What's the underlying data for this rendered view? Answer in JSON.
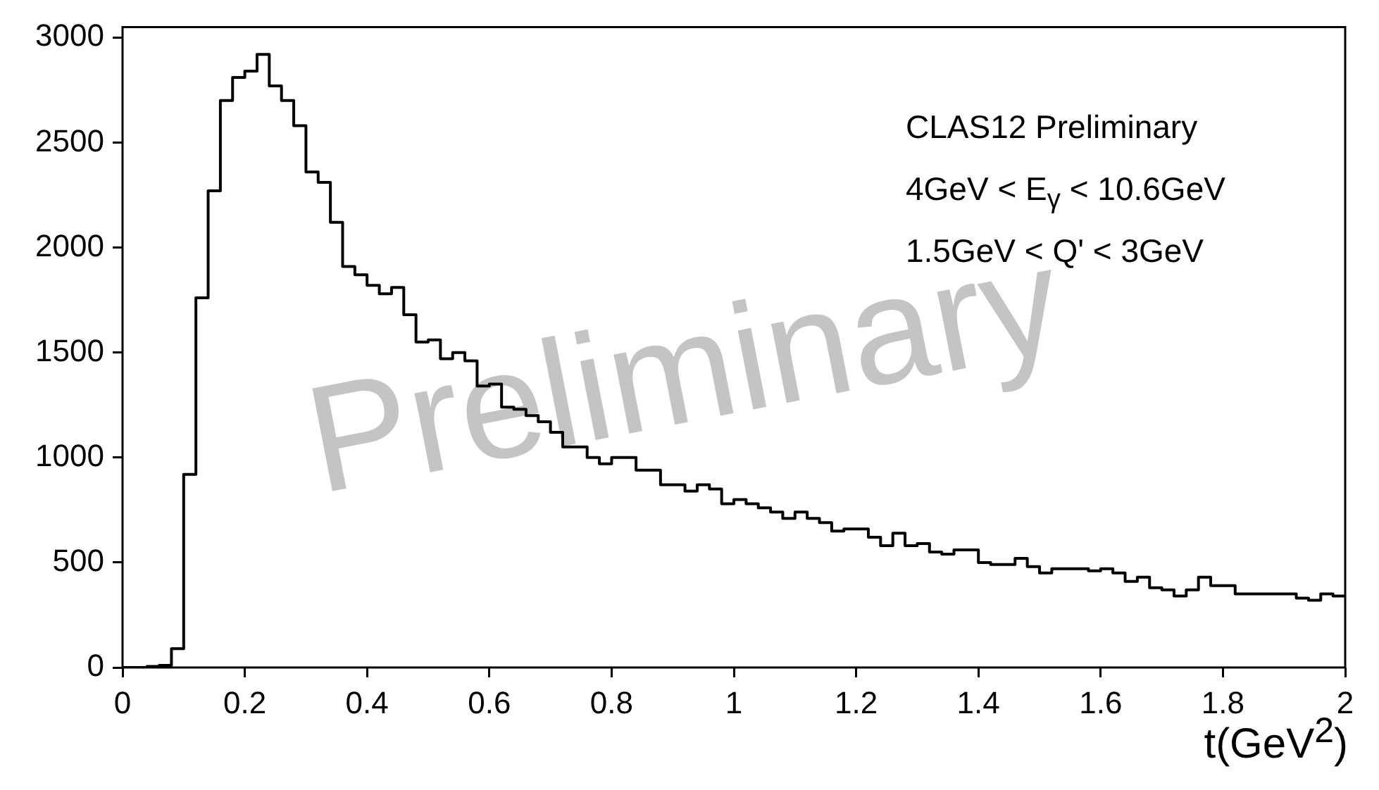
{
  "chart_data": {
    "type": "histogram",
    "xlabel": "t(GeV$^{2}$)",
    "annotations": [
      "Preliminary",
      "CLAS12 Preliminary",
      "4GeV < E$_{γ}$ < 10.6GeV",
      "1.5GeV < Q' < 3GeV"
    ],
    "bins": [
      0,
      0.02,
      0.04,
      0.06,
      0.08,
      0.1,
      0.12,
      0.14,
      0.16,
      0.18,
      0.2,
      0.22,
      0.24,
      0.26,
      0.28,
      0.3,
      0.32,
      0.34,
      0.36,
      0.38,
      0.4,
      0.42,
      0.44,
      0.46,
      0.48,
      0.5,
      0.52,
      0.54,
      0.56,
      0.58,
      0.6,
      0.62,
      0.64,
      0.66,
      0.68,
      0.7,
      0.72,
      0.74,
      0.76,
      0.78,
      0.8,
      0.82,
      0.84,
      0.86,
      0.88,
      0.9,
      0.92,
      0.94,
      0.96,
      0.98,
      1,
      1.02,
      1.04,
      1.06,
      1.08,
      1.1,
      1.12,
      1.14,
      1.16,
      1.18,
      1.2,
      1.22,
      1.24,
      1.26,
      1.28,
      1.3,
      1.32,
      1.34,
      1.36,
      1.38,
      1.4,
      1.42,
      1.44,
      1.46,
      1.48,
      1.5,
      1.52,
      1.54,
      1.56,
      1.58,
      1.6,
      1.62,
      1.64,
      1.66,
      1.68,
      1.7,
      1.72,
      1.74,
      1.76,
      1.78,
      1.8,
      1.82,
      1.84,
      1.86,
      1.88,
      1.9,
      1.92,
      1.94,
      1.96,
      1.98,
      2
    ],
    "values": [
      0,
      0,
      5,
      10,
      90,
      920,
      1760,
      2270,
      2700,
      2810,
      2840,
      2920,
      2770,
      2700,
      2580,
      2360,
      2310,
      2120,
      1910,
      1870,
      1820,
      1780,
      1810,
      1680,
      1550,
      1560,
      1470,
      1500,
      1460,
      1340,
      1350,
      1240,
      1230,
      1200,
      1170,
      1120,
      1050,
      1050,
      1000,
      970,
      1000,
      1000,
      940,
      940,
      870,
      870,
      840,
      870,
      850,
      780,
      800,
      780,
      760,
      740,
      710,
      740,
      710,
      690,
      650,
      660,
      660,
      620,
      580,
      640,
      580,
      590,
      550,
      540,
      560,
      560,
      500,
      490,
      490,
      520,
      480,
      450,
      470,
      470,
      470,
      460,
      470,
      450,
      410,
      430,
      380,
      370,
      340,
      370,
      430,
      390,
      390,
      350,
      350,
      350,
      350,
      350,
      330,
      320,
      350,
      340
    ],
    "color": "#000000",
    "xlim": [
      0,
      2
    ],
    "xticks": [
      0,
      0.2,
      0.4,
      0.6,
      0.8,
      1,
      1.2,
      1.4,
      1.6,
      1.8,
      2
    ],
    "ylim": [
      0,
      3050
    ],
    "yticks": [
      0,
      500,
      1000,
      1500,
      2000,
      2500,
      3000
    ],
    "grid": false,
    "legend": false
  }
}
